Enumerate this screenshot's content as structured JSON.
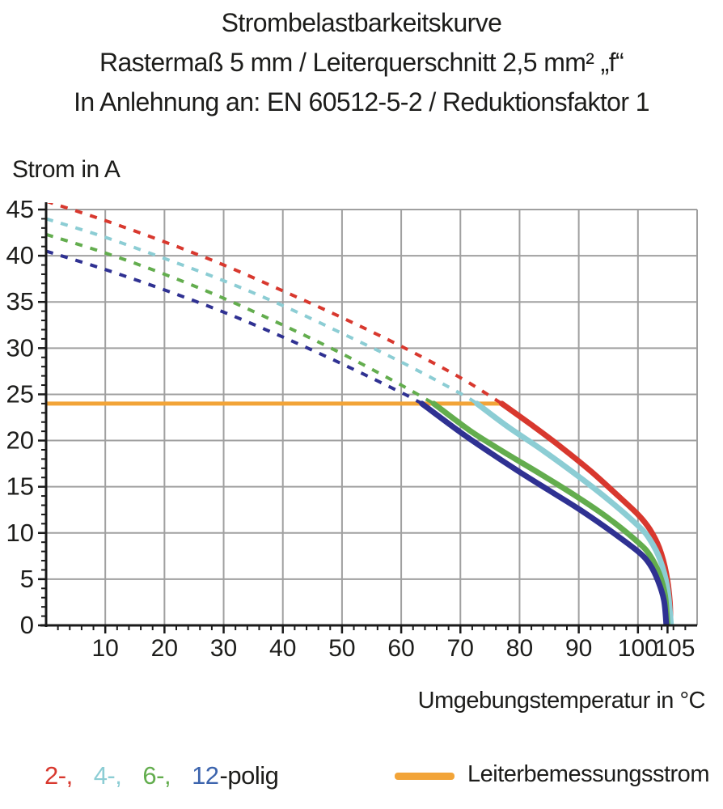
{
  "title": {
    "line1": "Strombelastbarkeitskurve",
    "line2": "Rastermaß 5 mm / Leiterquerschnitt 2,5 mm² „f“",
    "line3": "In Anlehnung an: EN 60512-5-2 / Reduktionsfaktor 1"
  },
  "axes": {
    "y_label": "Strom in A",
    "x_label": "Umgebungstemperatur in °C"
  },
  "legend": {
    "items": [
      {
        "label": "2-,",
        "color": "#d8382e"
      },
      {
        "label": "4-,",
        "color": "#8ccdd4"
      },
      {
        "label": "6-,",
        "color": "#63ad4e"
      },
      {
        "label": "12",
        "color": "#3c64ad"
      }
    ],
    "suffix": "-polig",
    "rated_label": "Leiterbemessungsstrom",
    "rated_color": "#f2a438"
  },
  "chart_data": {
    "type": "line",
    "title": "Strombelastbarkeitskurve",
    "xlabel": "Umgebungstemperatur in °C",
    "ylabel": "Strom in A",
    "xlim": [
      0,
      110
    ],
    "ylim": [
      0,
      45
    ],
    "x_major_ticks": [
      10,
      20,
      30,
      40,
      50,
      60,
      70,
      80,
      90,
      100,
      105
    ],
    "x_minor_step": 2,
    "y_major_ticks": [
      0,
      5,
      10,
      15,
      20,
      25,
      30,
      35,
      40,
      45
    ],
    "y_minor_step": 1,
    "grid": {
      "x_step": 10,
      "y_step": 5,
      "color": "#a0a0a0"
    },
    "axis_color": "#1a1a1a",
    "tick_label_color": "#1d1d1b",
    "rated_current": {
      "label": "Leiterbemessungsstrom",
      "value": 24,
      "x_start": 0,
      "x_end": 77,
      "color": "#f2a438"
    },
    "series": [
      {
        "name": "2-polig",
        "color": "#d8382e",
        "dashed": [
          [
            0,
            45.9
          ],
          [
            10,
            43.8
          ],
          [
            20,
            41.5
          ],
          [
            30,
            39.0
          ],
          [
            40,
            36.2
          ],
          [
            50,
            33.3
          ],
          [
            60,
            30.2
          ],
          [
            70,
            26.8
          ],
          [
            77,
            24
          ]
        ],
        "solid": [
          [
            77,
            24
          ],
          [
            82,
            21.7
          ],
          [
            87,
            19.3
          ],
          [
            92,
            16.7
          ],
          [
            96,
            14.4
          ],
          [
            100,
            12.0
          ],
          [
            102,
            10.4
          ],
          [
            103.6,
            8.4
          ],
          [
            104.8,
            5.6
          ],
          [
            105.4,
            2.6
          ],
          [
            105.5,
            0
          ]
        ]
      },
      {
        "name": "4-polig",
        "color": "#8ccdd4",
        "dashed": [
          [
            0,
            44.0
          ],
          [
            10,
            42.0
          ],
          [
            20,
            39.7
          ],
          [
            30,
            37.3
          ],
          [
            40,
            34.6
          ],
          [
            50,
            31.6
          ],
          [
            60,
            28.5
          ],
          [
            70,
            25.1
          ],
          [
            72.8,
            24
          ]
        ],
        "solid": [
          [
            72.8,
            24
          ],
          [
            78,
            21.5
          ],
          [
            84,
            18.9
          ],
          [
            90,
            16.1
          ],
          [
            95,
            13.6
          ],
          [
            100,
            10.8
          ],
          [
            102,
            9.3
          ],
          [
            103.8,
            7.0
          ],
          [
            105.0,
            4.0
          ],
          [
            105.6,
            0
          ]
        ]
      },
      {
        "name": "6-polig",
        "color": "#63ad4e",
        "dashed": [
          [
            0,
            42.3
          ],
          [
            10,
            40.3
          ],
          [
            20,
            38.0
          ],
          [
            30,
            35.4
          ],
          [
            40,
            32.5
          ],
          [
            50,
            29.4
          ],
          [
            60,
            26.0
          ],
          [
            65.5,
            24
          ]
        ],
        "solid": [
          [
            65.5,
            24
          ],
          [
            72,
            20.9
          ],
          [
            78,
            18.5
          ],
          [
            84,
            16.2
          ],
          [
            90,
            13.8
          ],
          [
            95,
            11.6
          ],
          [
            100,
            9.0
          ],
          [
            102,
            7.6
          ],
          [
            103.6,
            5.6
          ],
          [
            104.6,
            3.2
          ],
          [
            105.0,
            0
          ]
        ]
      },
      {
        "name": "12-polig",
        "color": "#2f3192",
        "dashed": [
          [
            0,
            40.5
          ],
          [
            10,
            38.5
          ],
          [
            20,
            36.3
          ],
          [
            30,
            33.9
          ],
          [
            40,
            31.2
          ],
          [
            50,
            28.3
          ],
          [
            60,
            25.2
          ],
          [
            63.5,
            24
          ]
        ],
        "solid": [
          [
            63.5,
            24
          ],
          [
            70,
            20.9
          ],
          [
            75,
            18.7
          ],
          [
            80,
            16.6
          ],
          [
            85,
            14.6
          ],
          [
            90,
            12.6
          ],
          [
            95,
            10.4
          ],
          [
            100,
            8.0
          ],
          [
            102,
            6.6
          ],
          [
            103.4,
            4.8
          ],
          [
            104.4,
            2.7
          ],
          [
            104.8,
            0
          ]
        ]
      }
    ]
  }
}
